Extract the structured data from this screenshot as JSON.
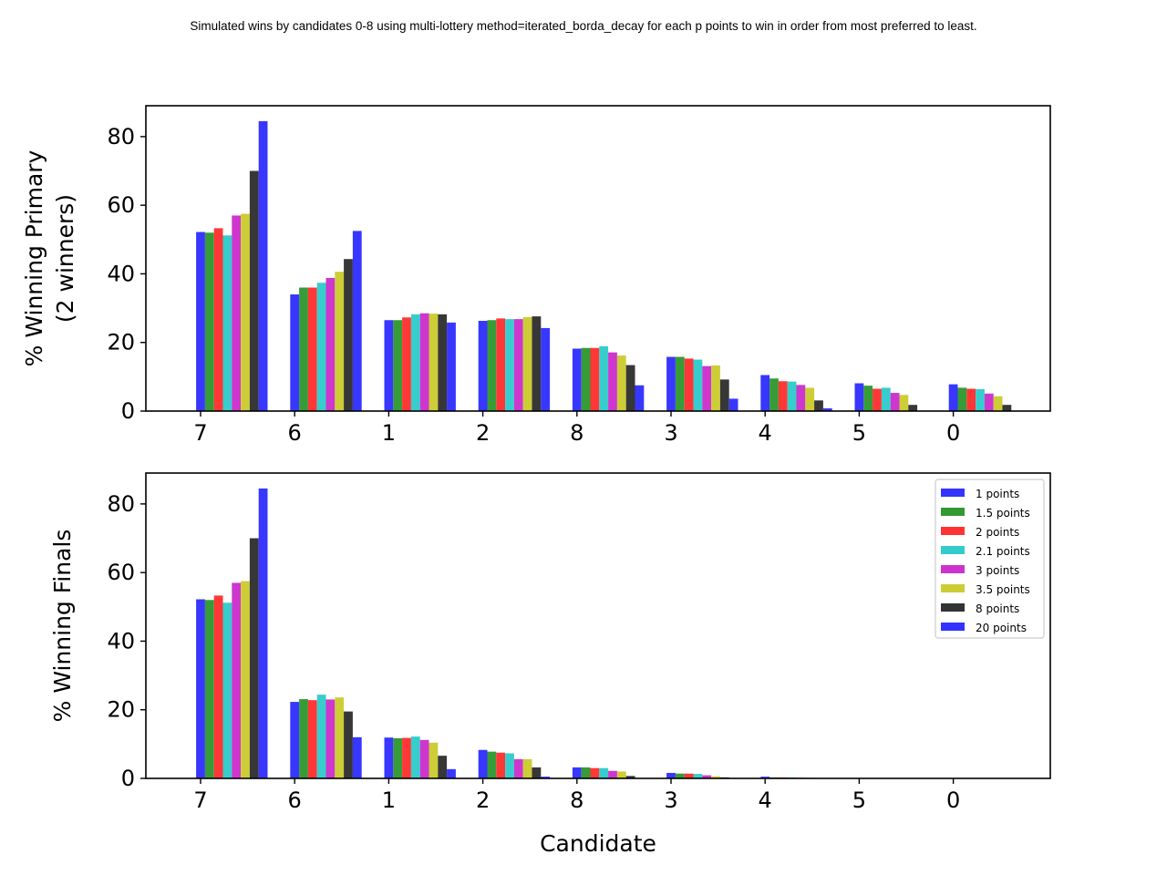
{
  "suptitle": "Simulated wins by candidates 0-8 using multi-lottery method=iterated_borda_decay for each p points to win in order from most preferred to least.",
  "colors": [
    "#3333ff",
    "#339933",
    "#ff3333",
    "#33cccc",
    "#cc33cc",
    "#cccc33",
    "#333333",
    "#3333ff"
  ],
  "chart_data": [
    {
      "type": "bar",
      "title": "",
      "xlabel": "",
      "ylabel_lines": [
        "% Winning Primary",
        "(2 winners)"
      ],
      "yticks": [
        0,
        20,
        40,
        60,
        80
      ],
      "ylim": [
        0,
        89
      ],
      "grid": false,
      "legend_placement": "none",
      "categories": [
        "7",
        "6",
        "1",
        "2",
        "8",
        "3",
        "4",
        "5",
        "0"
      ],
      "series": [
        {
          "name": "1 points",
          "values": [
            52.2,
            34.0,
            26.5,
            26.3,
            18.2,
            15.8,
            10.5,
            8.1,
            7.8
          ]
        },
        {
          "name": "1.5 points",
          "values": [
            52.0,
            36.0,
            26.5,
            26.5,
            18.4,
            15.8,
            9.5,
            7.4,
            6.8
          ]
        },
        {
          "name": "2 points",
          "values": [
            53.3,
            36.0,
            27.3,
            27.0,
            18.4,
            15.3,
            8.7,
            6.5,
            6.5
          ]
        },
        {
          "name": "2.1 points",
          "values": [
            51.2,
            37.4,
            28.2,
            26.8,
            18.9,
            15.0,
            8.6,
            6.8,
            6.4
          ]
        },
        {
          "name": "3 points",
          "values": [
            57.0,
            38.8,
            28.5,
            26.8,
            17.1,
            13.1,
            7.6,
            5.3,
            5.1
          ]
        },
        {
          "name": "3.5 points",
          "values": [
            57.5,
            40.6,
            28.4,
            27.4,
            16.2,
            13.3,
            6.8,
            4.7,
            4.3
          ]
        },
        {
          "name": "8 points",
          "values": [
            70.0,
            44.3,
            28.2,
            27.6,
            13.4,
            9.2,
            3.1,
            1.8,
            1.8
          ]
        },
        {
          "name": "20 points",
          "values": [
            84.5,
            52.5,
            25.8,
            24.2,
            7.5,
            3.6,
            0.8,
            0.1,
            0.1
          ]
        }
      ]
    },
    {
      "type": "bar",
      "title": "",
      "xlabel": "Candidate",
      "ylabel_lines": [
        "% Winning Finals"
      ],
      "yticks": [
        0,
        20,
        40,
        60,
        80
      ],
      "ylim": [
        0,
        89
      ],
      "grid": false,
      "legend_placement": "top-right",
      "categories": [
        "7",
        "6",
        "1",
        "2",
        "8",
        "3",
        "4",
        "5",
        "0"
      ],
      "series": [
        {
          "name": "1 points",
          "values": [
            52.2,
            22.3,
            11.9,
            8.3,
            3.2,
            1.6,
            0.5,
            0.1,
            0.1
          ]
        },
        {
          "name": "1.5 points",
          "values": [
            52.0,
            23.1,
            11.7,
            7.8,
            3.2,
            1.4,
            0.3,
            0.1,
            0.1
          ]
        },
        {
          "name": "2 points",
          "values": [
            53.3,
            22.8,
            11.8,
            7.5,
            3.0,
            1.4,
            0.3,
            0.1,
            0.1
          ]
        },
        {
          "name": "2.1 points",
          "values": [
            51.2,
            24.4,
            12.2,
            7.3,
            3.0,
            1.3,
            0.3,
            0.1,
            0.1
          ]
        },
        {
          "name": "3 points",
          "values": [
            57.0,
            23.0,
            11.2,
            5.6,
            2.2,
            0.9,
            0.2,
            0.1,
            0.1
          ]
        },
        {
          "name": "3.5 points",
          "values": [
            57.5,
            23.6,
            10.4,
            5.6,
            2.0,
            0.6,
            0.2,
            0.1,
            0.1
          ]
        },
        {
          "name": "8 points",
          "values": [
            70.0,
            19.5,
            6.6,
            3.2,
            0.7,
            0.3,
            0.1,
            0.1,
            0.1
          ]
        },
        {
          "name": "20 points",
          "values": [
            84.5,
            12.0,
            2.7,
            0.5,
            0.1,
            0.1,
            0.1,
            0.1,
            0.1
          ]
        }
      ]
    }
  ]
}
